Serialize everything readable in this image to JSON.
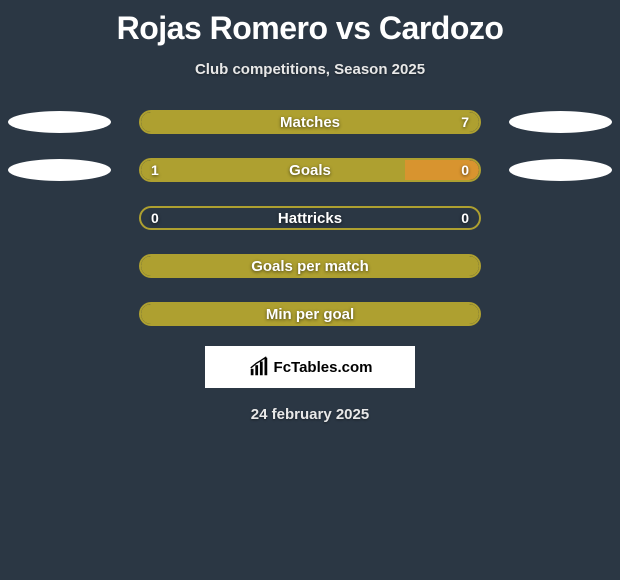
{
  "title": "Rojas Romero vs Cardozo",
  "subtitle": "Club competitions, Season 2025",
  "date": "24 february 2025",
  "attribution": {
    "text": "FcTables.com"
  },
  "colors": {
    "background": "#2b3744",
    "bar_border": "#aea030",
    "bar_fill": "#aea030",
    "ellipse": "#ffffff",
    "text": "#ffffff"
  },
  "stats": [
    {
      "label": "Matches",
      "left_value": "",
      "right_value": "7",
      "left_fill_pct": 0,
      "right_fill_pct": 100,
      "show_ellipse_left": true,
      "show_ellipse_right": true
    },
    {
      "label": "Goals",
      "left_value": "1",
      "right_value": "0",
      "left_fill_pct": 78,
      "right_fill_pct": 22,
      "show_ellipse_left": true,
      "show_ellipse_right": true
    },
    {
      "label": "Hattricks",
      "left_value": "0",
      "right_value": "0",
      "left_fill_pct": 0,
      "right_fill_pct": 0,
      "show_ellipse_left": false,
      "show_ellipse_right": false
    },
    {
      "label": "Goals per match",
      "left_value": "",
      "right_value": "",
      "left_fill_pct": 100,
      "right_fill_pct": 0,
      "show_ellipse_left": false,
      "show_ellipse_right": false
    },
    {
      "label": "Min per goal",
      "left_value": "",
      "right_value": "",
      "left_fill_pct": 100,
      "right_fill_pct": 0,
      "show_ellipse_left": false,
      "show_ellipse_right": false
    }
  ]
}
